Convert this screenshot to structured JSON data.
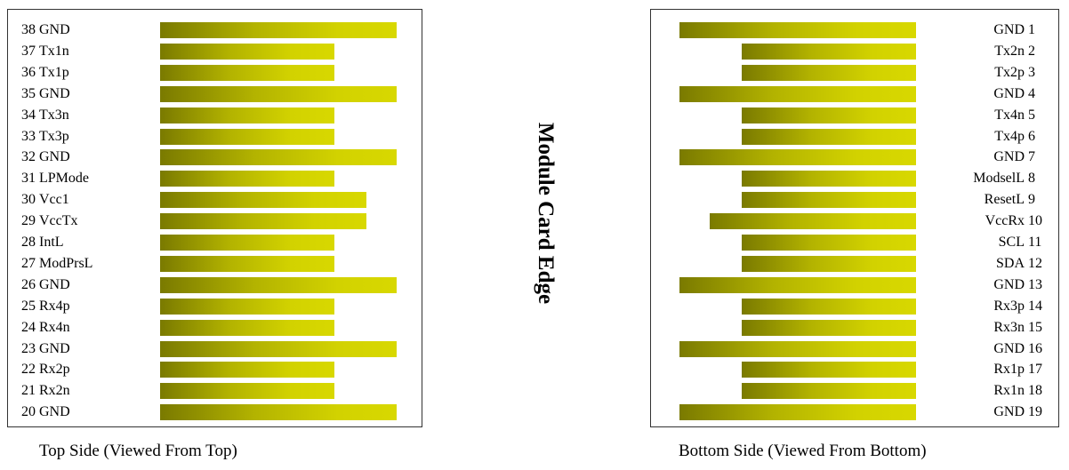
{
  "top_side": {
    "caption": "Top Side (Viewed From Top)",
    "pins": [
      {
        "number": "38",
        "name": "GND",
        "length": "long"
      },
      {
        "number": "37",
        "name": "Tx1n",
        "length": "short"
      },
      {
        "number": "36",
        "name": "Tx1p",
        "length": "short"
      },
      {
        "number": "35",
        "name": "GND",
        "length": "long"
      },
      {
        "number": "34",
        "name": "Tx3n",
        "length": "short"
      },
      {
        "number": "33",
        "name": "Tx3p",
        "length": "short"
      },
      {
        "number": "32",
        "name": "GND",
        "length": "long"
      },
      {
        "number": "31",
        "name": "LPMode",
        "length": "short"
      },
      {
        "number": "30",
        "name": "Vcc1",
        "length": "medium"
      },
      {
        "number": "29",
        "name": "VccTx",
        "length": "medium"
      },
      {
        "number": "28",
        "name": "IntL",
        "length": "short"
      },
      {
        "number": "27",
        "name": "ModPrsL",
        "length": "short"
      },
      {
        "number": "26",
        "name": "GND",
        "length": "long"
      },
      {
        "number": "25",
        "name": "Rx4p",
        "length": "short"
      },
      {
        "number": "24",
        "name": "Rx4n",
        "length": "short"
      },
      {
        "number": "23",
        "name": "GND",
        "length": "long"
      },
      {
        "number": "22",
        "name": "Rx2p",
        "length": "short"
      },
      {
        "number": "21",
        "name": "Rx2n",
        "length": "short"
      },
      {
        "number": "20",
        "name": "GND",
        "length": "long"
      }
    ]
  },
  "edge_title": "Module Card Edge",
  "bottom_side": {
    "caption": "Bottom Side (Viewed From Bottom)",
    "pins": [
      {
        "number": "1",
        "name": "GND",
        "length": "long"
      },
      {
        "number": "2",
        "name": "Tx2n",
        "length": "short"
      },
      {
        "number": "3",
        "name": "Tx2p",
        "length": "short"
      },
      {
        "number": "4",
        "name": "GND",
        "length": "long"
      },
      {
        "number": "5",
        "name": "Tx4n",
        "length": "short"
      },
      {
        "number": "6",
        "name": "Tx4p",
        "length": "short"
      },
      {
        "number": "7",
        "name": "GND",
        "length": "long"
      },
      {
        "number": "8",
        "name": "ModselL",
        "length": "short"
      },
      {
        "number": "9",
        "name": "ResetL",
        "length": "short"
      },
      {
        "number": "10",
        "name": "VccRx",
        "length": "medium"
      },
      {
        "number": "11",
        "name": "SCL",
        "length": "short"
      },
      {
        "number": "12",
        "name": "SDA",
        "length": "short"
      },
      {
        "number": "13",
        "name": "GND",
        "length": "long"
      },
      {
        "number": "14",
        "name": "Rx3p",
        "length": "short"
      },
      {
        "number": "15",
        "name": "Rx3n",
        "length": "short"
      },
      {
        "number": "16",
        "name": "GND",
        "length": "long"
      },
      {
        "number": "17",
        "name": "Rx1p",
        "length": "short"
      },
      {
        "number": "18",
        "name": "Rx1n",
        "length": "short"
      },
      {
        "number": "19",
        "name": "GND",
        "length": "long"
      }
    ]
  }
}
